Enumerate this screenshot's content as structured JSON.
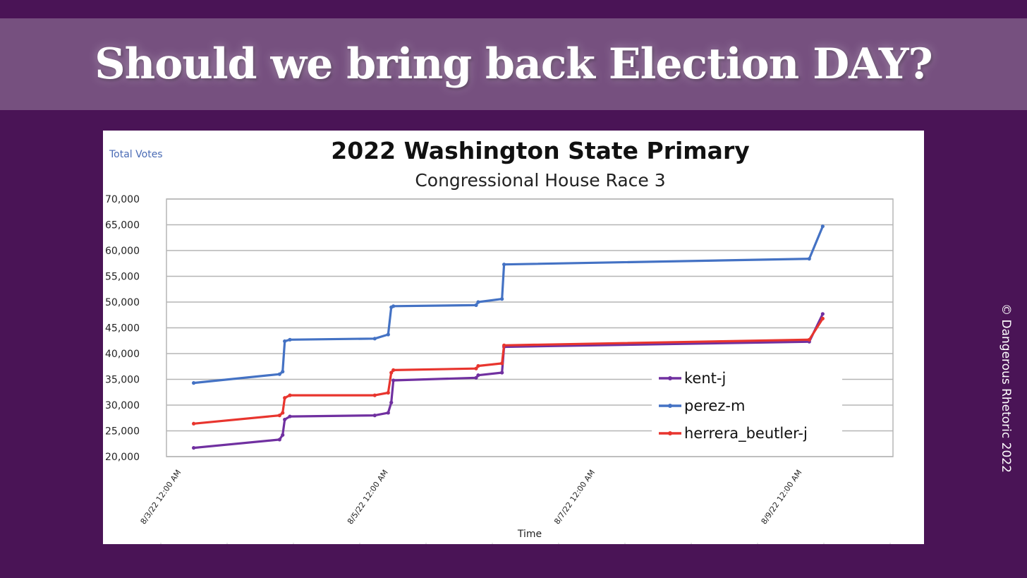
{
  "banner": {
    "title": "Should we bring back Election DAY?"
  },
  "copyright": "© Dangerous Rhetoric 2022",
  "colors": {
    "background": "#4a1456",
    "banner": "#76507f",
    "card": "#ffffff"
  },
  "chart_data": {
    "type": "line",
    "title": "2022 Washington State Primary",
    "subtitle": "Congressional House Race 3",
    "ylabel": "Total Votes",
    "xlabel": "Time",
    "ylim": [
      20000,
      70000
    ],
    "yticks": [
      "20,000",
      "25,000",
      "30,000",
      "35,000",
      "40,000",
      "45,000",
      "50,000",
      "55,000",
      "60,000",
      "65,000",
      "70,000"
    ],
    "xlim": [
      0,
      5.8
    ],
    "xticks": [
      {
        "x": 0,
        "label": "8/3/22 12:00 AM"
      },
      {
        "x": 2,
        "label": "8/5/22 12:00 AM"
      },
      {
        "x": 4,
        "label": "8/7/22 12:00 AM"
      },
      {
        "x": 6,
        "label": "8/9/22 12:00 AM"
      }
    ],
    "grid": true,
    "legend": "bottom-right",
    "series": [
      {
        "name": "kent-j",
        "color": "#7030a0",
        "points": [
          [
            0.12,
            21700
          ],
          [
            0.95,
            23300
          ],
          [
            0.98,
            24200
          ],
          [
            1.0,
            27200
          ],
          [
            1.05,
            27800
          ],
          [
            1.87,
            28000
          ],
          [
            2.0,
            28500
          ],
          [
            2.03,
            30500
          ],
          [
            2.05,
            34800
          ],
          [
            2.85,
            35300
          ],
          [
            2.87,
            35800
          ],
          [
            3.1,
            36300
          ],
          [
            3.12,
            41300
          ],
          [
            6.07,
            42300
          ],
          [
            6.2,
            47700
          ]
        ]
      },
      {
        "name": "perez-m",
        "color": "#4472c4",
        "points": [
          [
            0.12,
            34300
          ],
          [
            0.95,
            36000
          ],
          [
            0.98,
            36500
          ],
          [
            1.0,
            42400
          ],
          [
            1.05,
            42700
          ],
          [
            1.87,
            42900
          ],
          [
            2.0,
            43700
          ],
          [
            2.03,
            49000
          ],
          [
            2.05,
            49200
          ],
          [
            2.85,
            49400
          ],
          [
            2.87,
            50000
          ],
          [
            3.1,
            50600
          ],
          [
            3.12,
            57300
          ],
          [
            6.07,
            58400
          ],
          [
            6.2,
            64700
          ]
        ]
      },
      {
        "name": "herrera_beutler-j",
        "color": "#e8352e",
        "points": [
          [
            0.12,
            26400
          ],
          [
            0.95,
            28000
          ],
          [
            0.98,
            28500
          ],
          [
            1.0,
            31400
          ],
          [
            1.05,
            31900
          ],
          [
            1.87,
            31900
          ],
          [
            2.0,
            32400
          ],
          [
            2.03,
            36300
          ],
          [
            2.05,
            36800
          ],
          [
            2.85,
            37100
          ],
          [
            2.87,
            37600
          ],
          [
            3.1,
            38100
          ],
          [
            3.12,
            41600
          ],
          [
            6.07,
            42700
          ],
          [
            6.2,
            46800
          ]
        ]
      }
    ]
  }
}
